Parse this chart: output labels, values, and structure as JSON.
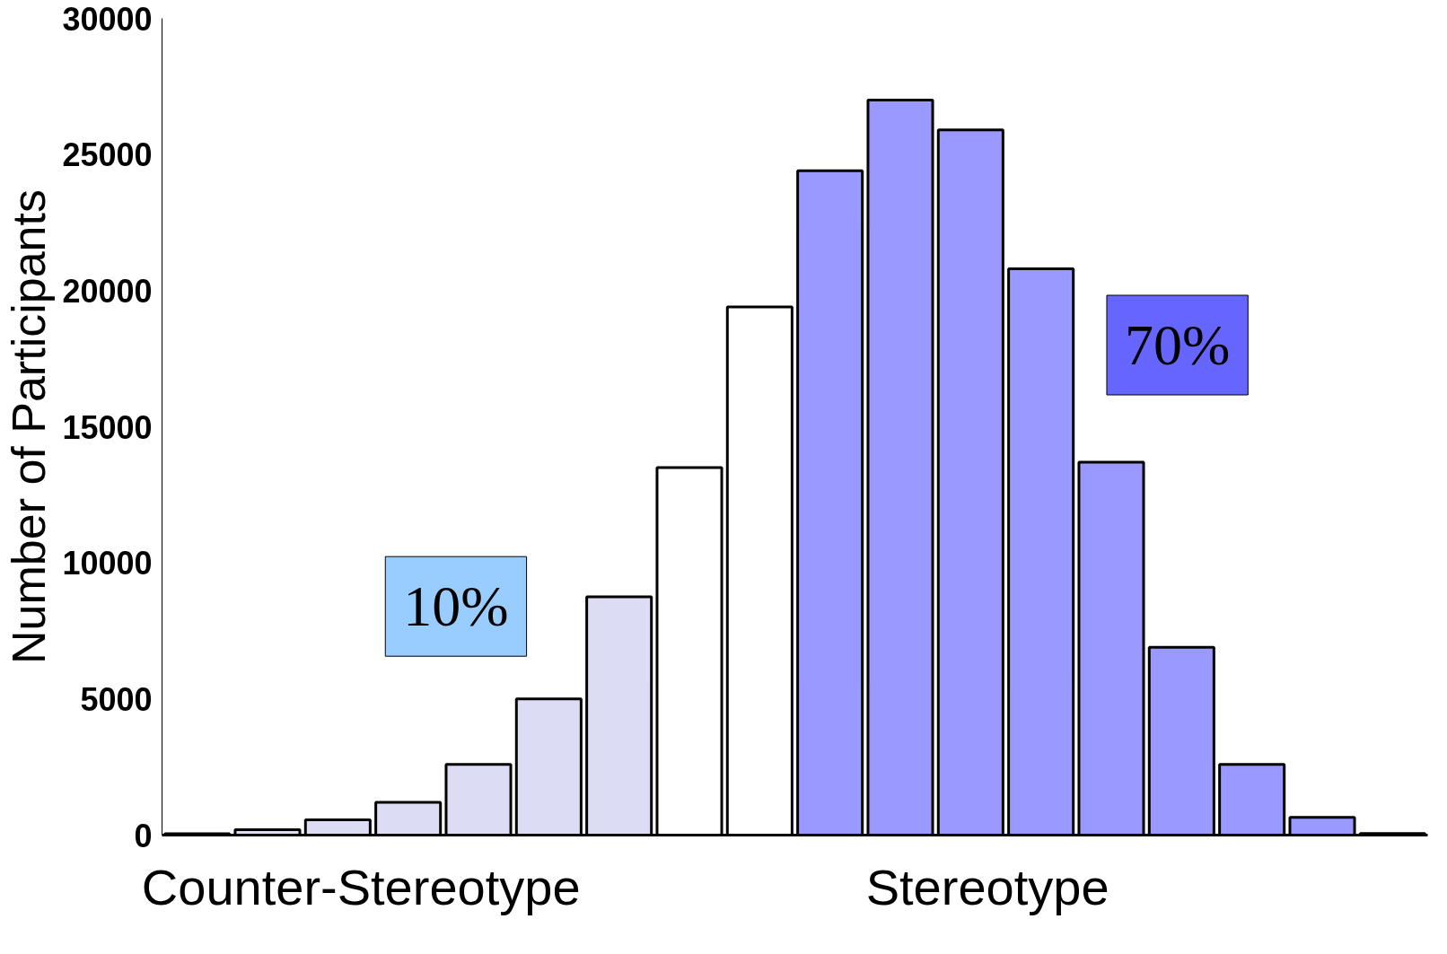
{
  "chart_data": {
    "type": "bar",
    "ylabel": "Number of Participants",
    "categories": [
      null,
      null,
      null,
      null,
      null,
      null,
      null,
      null,
      null,
      null,
      null,
      null,
      null,
      null,
      null,
      null,
      null,
      null
    ],
    "values": [
      50,
      200,
      560,
      1200,
      2600,
      5000,
      8750,
      13500,
      19400,
      24400,
      27000,
      25900,
      20800,
      13700,
      6900,
      2600,
      650,
      60
    ],
    "colors": [
      "#dcdcf5",
      "#dcdcf5",
      "#dcdcf5",
      "#dcdcf5",
      "#dcdcf5",
      "#dcdcf5",
      "#dcdcf5",
      "#ffffff",
      "#ffffff",
      "#9999ff",
      "#9999ff",
      "#9999ff",
      "#9999ff",
      "#9999ff",
      "#9999ff",
      "#9999ff",
      "#9999ff",
      "#9999ff"
    ],
    "ylim": [
      0,
      30000
    ],
    "yticks": [
      0,
      5000,
      10000,
      15000,
      20000,
      25000,
      30000
    ],
    "annotations": [
      "10%",
      "70%",
      "Counter-Stereotype",
      "Stereotype"
    ],
    "grid": false
  }
}
